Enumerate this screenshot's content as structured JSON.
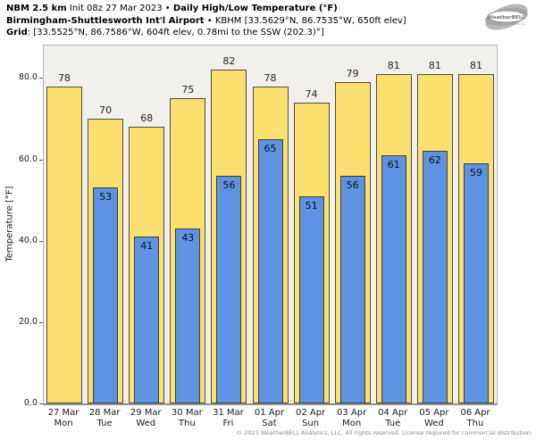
{
  "header": {
    "line1_bold1": "NBM 2.5 km",
    "line1_normal": " Init 08z 27 Mar 2023 • ",
    "line1_bold2": "Daily High/Low Temperature (°F)",
    "line2_bold": "Birmingham-Shuttlesworth Int'l Airport",
    "line2_normal": " • KBHM [33.5629°N, 86.7535°W, 650ft elev]",
    "line3_bold": "Grid",
    "line3_normal": ": [33.5525°N, 86.7586°W, 604ft elev, 0.78mi to the SSW (202.3)°]"
  },
  "logo": {
    "brand": "WeatherBELL",
    "sub": "Analytics LLC"
  },
  "chart_data": {
    "type": "bar",
    "title": "Daily High/Low Temperature (°F)",
    "ylabel": "Temperature [°F]",
    "ylim": [
      0,
      88
    ],
    "yticks": [
      0,
      20,
      40,
      60,
      80
    ],
    "ytick_labels": [
      "0.0",
      "20.0",
      "40.0",
      "60.0",
      "80.0"
    ],
    "grid": false,
    "legend": "none",
    "plot_bg": "#f1f0ed",
    "categories": [
      [
        "27 Mar",
        "Mon"
      ],
      [
        "28 Mar",
        "Tue"
      ],
      [
        "29 Mar",
        "Wed"
      ],
      [
        "30 Mar",
        "Thu"
      ],
      [
        "31 Mar",
        "Fri"
      ],
      [
        "01 Apr",
        "Sat"
      ],
      [
        "02 Apr",
        "Sun"
      ],
      [
        "03 Apr",
        "Mon"
      ],
      [
        "04 Apr",
        "Tue"
      ],
      [
        "05 Apr",
        "Wed"
      ],
      [
        "06 Apr",
        "Thu"
      ]
    ],
    "series": [
      {
        "name": "High",
        "color": "#fbdf6f",
        "values": [
          78,
          70,
          68,
          75,
          82,
          78,
          74,
          79,
          81,
          81,
          81
        ]
      },
      {
        "name": "Low",
        "color": "#5e92e3",
        "values": [
          null,
          53,
          41,
          43,
          56,
          65,
          51,
          56,
          61,
          62,
          59
        ]
      }
    ]
  },
  "footer": {
    "copyright": "© 2023 WeatherBELL Analytics, LLC. All rights reserved. License required for commercial distribution."
  }
}
